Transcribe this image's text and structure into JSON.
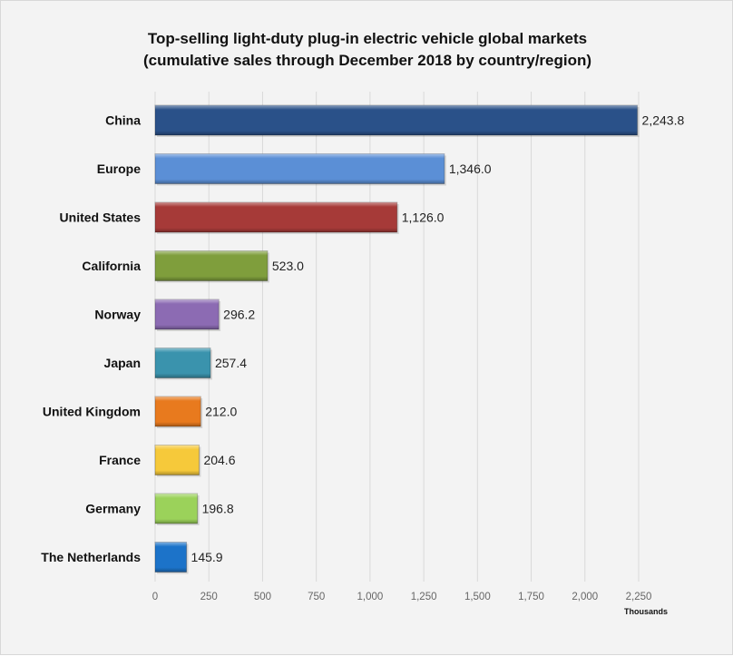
{
  "chart_data": {
    "type": "bar",
    "orientation": "horizontal",
    "title": "Top-selling light-duty plug-in electric vehicle global markets",
    "subtitle": "(cumulative sales through December 2018 by country/region)",
    "categories": [
      "China",
      "Europe",
      "United States",
      "California",
      "Norway",
      "Japan",
      "United Kingdom",
      "France",
      "Germany",
      "The Netherlands"
    ],
    "values": [
      2243.8,
      1346.0,
      1126.0,
      523.0,
      296.2,
      257.4,
      212.0,
      204.6,
      196.8,
      145.9
    ],
    "value_labels": [
      "2,243.8",
      "1,346.0",
      "1,126.0",
      "523.0",
      "296.2",
      "257.4",
      "212.0",
      "204.6",
      "196.8",
      "145.9"
    ],
    "colors": [
      "#2a5189",
      "#5b8fd6",
      "#a63a38",
      "#7f9e3c",
      "#8c6bb3",
      "#3a93ad",
      "#e87a1e",
      "#f6c93a",
      "#9bd25a",
      "#1c73c9"
    ],
    "xlim": [
      0,
      2250
    ],
    "xticks": [
      "0",
      "250",
      "500",
      "750",
      "1,000",
      "1,250",
      "1,500",
      "1,750",
      "2,000",
      "2,250"
    ],
    "xtick_values": [
      0,
      250,
      500,
      750,
      1000,
      1250,
      1500,
      1750,
      2000,
      2250
    ],
    "xlabel": "Thousands",
    "grid": true,
    "legend": "none"
  }
}
